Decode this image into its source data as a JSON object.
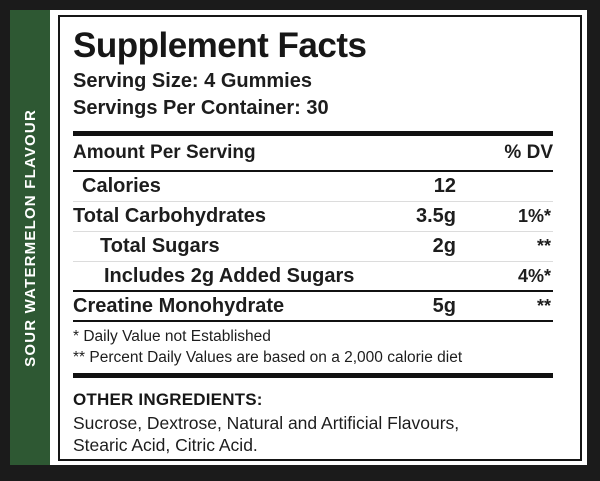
{
  "sidebar": {
    "flavor_label": "SOUR WATERMELON FLAVOUR"
  },
  "panel": {
    "title": "Supplement Facts",
    "serving_size": "Serving Size: 4 Gummies",
    "servings_per_container": "Servings Per Container: 30",
    "header": {
      "amount_label": "Amount Per Serving",
      "dv_label": "% DV"
    },
    "rows": [
      {
        "label": "Calories",
        "amount": "12",
        "dv": ""
      },
      {
        "label": "Total Carbohydrates",
        "amount": "3.5g",
        "dv": "1%*"
      },
      {
        "label": "Total Sugars",
        "amount": "2g",
        "dv": "**"
      },
      {
        "label": "Includes 2g Added Sugars",
        "amount": "",
        "dv": "4%*"
      },
      {
        "label": "Creatine Monohydrate",
        "amount": "5g",
        "dv": "**"
      }
    ],
    "footnotes": {
      "line1": "* Daily Value not Established",
      "line2": "** Percent Daily Values are based on a 2,000 calorie diet"
    },
    "other_ingredients": {
      "heading": "OTHER INGREDIENTS:",
      "body": "Sucrose, Dextrose, Natural and Artificial Flavours, Stearic Acid, Citric Acid."
    }
  },
  "colors": {
    "sidebar_green": "#2e5833",
    "frame_black": "#1b1b1b",
    "rule_black": "#111111",
    "rule_gray": "#dcdcdc"
  }
}
